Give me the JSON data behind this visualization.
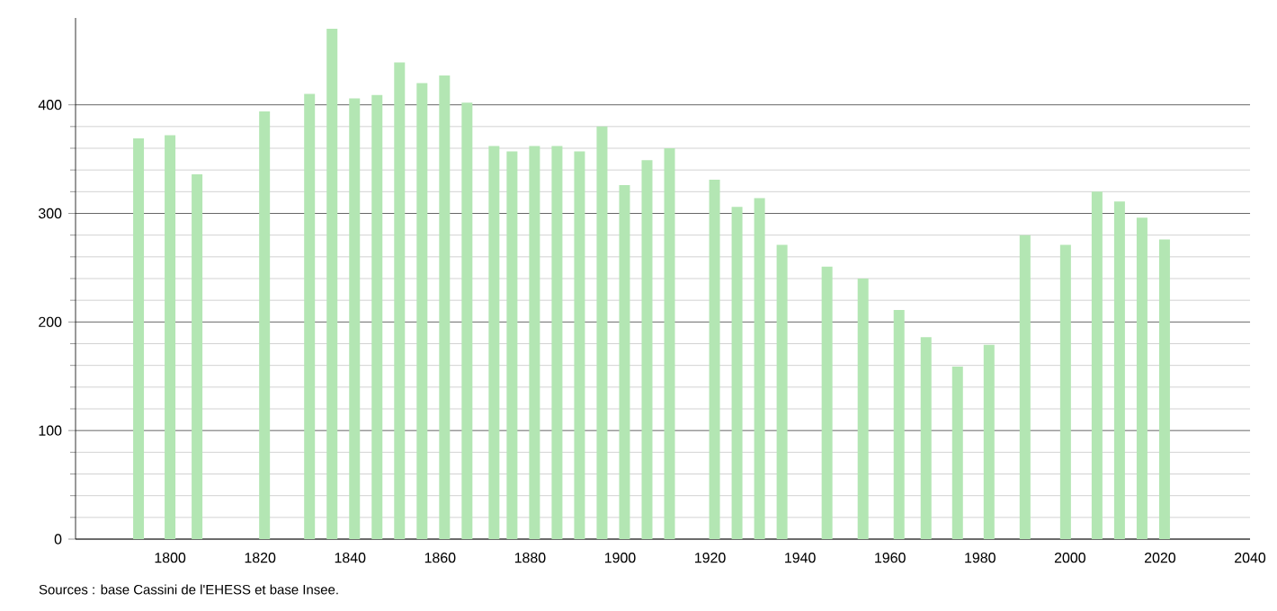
{
  "chart_data": {
    "type": "bar",
    "x": [
      1793,
      1800,
      1806,
      1821,
      1831,
      1836,
      1841,
      1846,
      1851,
      1856,
      1861,
      1866,
      1872,
      1876,
      1881,
      1886,
      1891,
      1896,
      1901,
      1906,
      1911,
      1921,
      1926,
      1931,
      1936,
      1946,
      1954,
      1962,
      1968,
      1975,
      1982,
      1990,
      1999,
      2006,
      2011,
      2016,
      2021
    ],
    "values": [
      369,
      372,
      336,
      394,
      410,
      470,
      406,
      409,
      439,
      420,
      427,
      402,
      362,
      357,
      362,
      362,
      357,
      380,
      326,
      349,
      360,
      331,
      306,
      314,
      271,
      251,
      240,
      211,
      186,
      159,
      179,
      280,
      271,
      320,
      311,
      296,
      276
    ],
    "color": "#b3e6b3",
    "xlim": [
      1779,
      2040
    ],
    "xticks": [
      1800,
      1820,
      1840,
      1860,
      1880,
      1900,
      1920,
      1940,
      1960,
      1980,
      2000,
      2020,
      2040
    ],
    "ylim": [
      0,
      480
    ],
    "yticks": [
      0,
      100,
      200,
      300,
      400
    ],
    "grid": "y",
    "annotations": [
      "Sources : base Cassini de l'EHESS et base Insee."
    ]
  }
}
